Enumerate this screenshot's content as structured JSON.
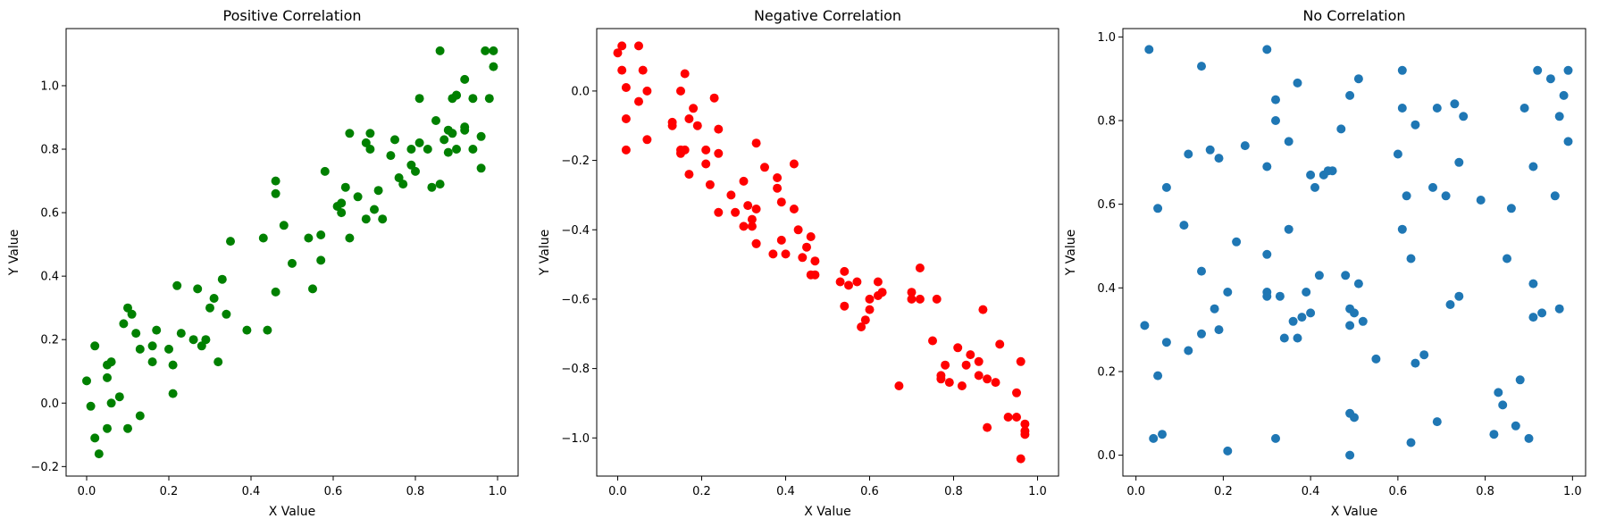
{
  "chart_data": [
    {
      "type": "scatter",
      "title": "Positive Correlation",
      "xlabel": "X Value",
      "ylabel": "Y Value",
      "xlim": [
        -0.05,
        1.05
      ],
      "ylim": [
        -0.23,
        1.18
      ],
      "xticks": [
        "0.0",
        "0.2",
        "0.4",
        "0.6",
        "0.8",
        "1.0"
      ],
      "yticks": [
        "−0.2",
        "0.0",
        "0.2",
        "0.4",
        "0.6",
        "0.8",
        "1.0"
      ],
      "color": "#008000",
      "points": [
        [
          0.0,
          0.07
        ],
        [
          0.01,
          -0.01
        ],
        [
          0.02,
          0.18
        ],
        [
          0.02,
          -0.11
        ],
        [
          0.03,
          -0.16
        ],
        [
          0.05,
          0.08
        ],
        [
          0.05,
          -0.08
        ],
        [
          0.05,
          0.12
        ],
        [
          0.06,
          0.13
        ],
        [
          0.06,
          0.0
        ],
        [
          0.08,
          0.02
        ],
        [
          0.09,
          0.25
        ],
        [
          0.1,
          0.3
        ],
        [
          0.1,
          -0.08
        ],
        [
          0.11,
          0.28
        ],
        [
          0.12,
          0.22
        ],
        [
          0.13,
          0.17
        ],
        [
          0.13,
          -0.04
        ],
        [
          0.16,
          0.13
        ],
        [
          0.16,
          0.18
        ],
        [
          0.17,
          0.23
        ],
        [
          0.2,
          0.17
        ],
        [
          0.21,
          0.12
        ],
        [
          0.21,
          0.03
        ],
        [
          0.22,
          0.37
        ],
        [
          0.23,
          0.22
        ],
        [
          0.26,
          0.2
        ],
        [
          0.27,
          0.36
        ],
        [
          0.28,
          0.18
        ],
        [
          0.29,
          0.2
        ],
        [
          0.3,
          0.3
        ],
        [
          0.31,
          0.33
        ],
        [
          0.32,
          0.13
        ],
        [
          0.33,
          0.39
        ],
        [
          0.34,
          0.28
        ],
        [
          0.35,
          0.51
        ],
        [
          0.39,
          0.23
        ],
        [
          0.43,
          0.52
        ],
        [
          0.44,
          0.23
        ],
        [
          0.46,
          0.35
        ],
        [
          0.46,
          0.66
        ],
        [
          0.46,
          0.7
        ],
        [
          0.48,
          0.56
        ],
        [
          0.5,
          0.44
        ],
        [
          0.54,
          0.52
        ],
        [
          0.55,
          0.36
        ],
        [
          0.57,
          0.53
        ],
        [
          0.57,
          0.45
        ],
        [
          0.58,
          0.73
        ],
        [
          0.61,
          0.62
        ],
        [
          0.62,
          0.63
        ],
        [
          0.62,
          0.6
        ],
        [
          0.63,
          0.68
        ],
        [
          0.64,
          0.52
        ],
        [
          0.64,
          0.85
        ],
        [
          0.66,
          0.65
        ],
        [
          0.68,
          0.58
        ],
        [
          0.68,
          0.82
        ],
        [
          0.69,
          0.8
        ],
        [
          0.69,
          0.85
        ],
        [
          0.7,
          0.61
        ],
        [
          0.71,
          0.67
        ],
        [
          0.72,
          0.58
        ],
        [
          0.74,
          0.78
        ],
        [
          0.75,
          0.83
        ],
        [
          0.76,
          0.71
        ],
        [
          0.77,
          0.69
        ],
        [
          0.79,
          0.8
        ],
        [
          0.79,
          0.75
        ],
        [
          0.8,
          0.73
        ],
        [
          0.81,
          0.96
        ],
        [
          0.81,
          0.82
        ],
        [
          0.83,
          0.8
        ],
        [
          0.84,
          0.68
        ],
        [
          0.85,
          0.89
        ],
        [
          0.86,
          1.11
        ],
        [
          0.86,
          0.69
        ],
        [
          0.87,
          0.83
        ],
        [
          0.88,
          0.86
        ],
        [
          0.88,
          0.79
        ],
        [
          0.89,
          0.96
        ],
        [
          0.89,
          0.85
        ],
        [
          0.9,
          0.97
        ],
        [
          0.9,
          0.97
        ],
        [
          0.9,
          0.8
        ],
        [
          0.92,
          1.02
        ],
        [
          0.92,
          0.86
        ],
        [
          0.92,
          0.87
        ],
        [
          0.94,
          0.96
        ],
        [
          0.94,
          0.8
        ],
        [
          0.96,
          0.84
        ],
        [
          0.96,
          0.74
        ],
        [
          0.97,
          1.11
        ],
        [
          0.98,
          0.96
        ],
        [
          0.99,
          1.11
        ],
        [
          0.99,
          1.06
        ]
      ]
    },
    {
      "type": "scatter",
      "title": "Negative Correlation",
      "xlabel": "X Value",
      "ylabel": "Y Value",
      "xlim": [
        -0.05,
        1.05
      ],
      "ylim": [
        -1.11,
        0.18
      ],
      "xticks": [
        "0.0",
        "0.2",
        "0.4",
        "0.6",
        "0.8",
        "1.0"
      ],
      "yticks": [
        "−1.0",
        "−0.8",
        "−0.6",
        "−0.4",
        "−0.2",
        "0.0"
      ],
      "color": "#ff0000",
      "points": [
        [
          0.0,
          0.11
        ],
        [
          0.01,
          0.13
        ],
        [
          0.01,
          0.06
        ],
        [
          0.02,
          -0.08
        ],
        [
          0.02,
          -0.17
        ],
        [
          0.02,
          0.01
        ],
        [
          0.05,
          0.13
        ],
        [
          0.05,
          -0.03
        ],
        [
          0.06,
          0.06
        ],
        [
          0.07,
          0.0
        ],
        [
          0.07,
          -0.14
        ],
        [
          0.13,
          -0.09
        ],
        [
          0.13,
          -0.1
        ],
        [
          0.15,
          -0.18
        ],
        [
          0.15,
          0.0
        ],
        [
          0.15,
          -0.17
        ],
        [
          0.16,
          -0.17
        ],
        [
          0.16,
          0.05
        ],
        [
          0.17,
          -0.24
        ],
        [
          0.17,
          -0.08
        ],
        [
          0.18,
          -0.05
        ],
        [
          0.19,
          -0.1
        ],
        [
          0.21,
          -0.21
        ],
        [
          0.21,
          -0.17
        ],
        [
          0.22,
          -0.27
        ],
        [
          0.23,
          -0.02
        ],
        [
          0.24,
          -0.11
        ],
        [
          0.24,
          -0.18
        ],
        [
          0.24,
          -0.35
        ],
        [
          0.27,
          -0.3
        ],
        [
          0.28,
          -0.35
        ],
        [
          0.3,
          -0.26
        ],
        [
          0.3,
          -0.39
        ],
        [
          0.31,
          -0.33
        ],
        [
          0.32,
          -0.37
        ],
        [
          0.32,
          -0.39
        ],
        [
          0.33,
          -0.15
        ],
        [
          0.33,
          -0.34
        ],
        [
          0.33,
          -0.44
        ],
        [
          0.33,
          -0.44
        ],
        [
          0.35,
          -0.22
        ],
        [
          0.37,
          -0.47
        ],
        [
          0.38,
          -0.25
        ],
        [
          0.38,
          -0.28
        ],
        [
          0.39,
          -0.43
        ],
        [
          0.39,
          -0.32
        ],
        [
          0.4,
          -0.47
        ],
        [
          0.42,
          -0.21
        ],
        [
          0.42,
          -0.34
        ],
        [
          0.43,
          -0.4
        ],
        [
          0.44,
          -0.48
        ],
        [
          0.45,
          -0.45
        ],
        [
          0.46,
          -0.42
        ],
        [
          0.46,
          -0.53
        ],
        [
          0.47,
          -0.49
        ],
        [
          0.47,
          -0.53
        ],
        [
          0.53,
          -0.55
        ],
        [
          0.54,
          -0.52
        ],
        [
          0.54,
          -0.62
        ],
        [
          0.55,
          -0.56
        ],
        [
          0.57,
          -0.55
        ],
        [
          0.58,
          -0.68
        ],
        [
          0.59,
          -0.66
        ],
        [
          0.6,
          -0.63
        ],
        [
          0.6,
          -0.6
        ],
        [
          0.62,
          -0.59
        ],
        [
          0.62,
          -0.55
        ],
        [
          0.63,
          -0.58
        ],
        [
          0.67,
          -0.85
        ],
        [
          0.7,
          -0.58
        ],
        [
          0.7,
          -0.6
        ],
        [
          0.72,
          -0.6
        ],
        [
          0.72,
          -0.51
        ],
        [
          0.75,
          -0.72
        ],
        [
          0.76,
          -0.6
        ],
        [
          0.77,
          -0.82
        ],
        [
          0.77,
          -0.83
        ],
        [
          0.78,
          -0.79
        ],
        [
          0.79,
          -0.84
        ],
        [
          0.81,
          -0.74
        ],
        [
          0.82,
          -0.85
        ],
        [
          0.83,
          -0.79
        ],
        [
          0.84,
          -0.76
        ],
        [
          0.86,
          -0.78
        ],
        [
          0.86,
          -0.82
        ],
        [
          0.87,
          -0.63
        ],
        [
          0.88,
          -0.83
        ],
        [
          0.88,
          -0.97
        ],
        [
          0.9,
          -0.84
        ],
        [
          0.91,
          -0.73
        ],
        [
          0.93,
          -0.94
        ],
        [
          0.95,
          -0.87
        ],
        [
          0.95,
          -0.94
        ],
        [
          0.96,
          -0.78
        ],
        [
          0.96,
          -1.06
        ],
        [
          0.97,
          -0.96
        ],
        [
          0.97,
          -0.98
        ],
        [
          0.97,
          -0.99
        ]
      ]
    },
    {
      "type": "scatter",
      "title": "No Correlation",
      "xlabel": "X Value",
      "ylabel": "Y Value",
      "xlim": [
        -0.03,
        1.03
      ],
      "ylim": [
        -0.05,
        1.02
      ],
      "xticks": [
        "0.0",
        "0.2",
        "0.4",
        "0.6",
        "0.8",
        "1.0"
      ],
      "yticks": [
        "0.0",
        "0.2",
        "0.4",
        "0.6",
        "0.8",
        "1.0"
      ],
      "color": "#1f77b4",
      "points": [
        [
          0.02,
          0.31
        ],
        [
          0.03,
          0.97
        ],
        [
          0.04,
          0.04
        ],
        [
          0.05,
          0.59
        ],
        [
          0.05,
          0.19
        ],
        [
          0.06,
          0.05
        ],
        [
          0.07,
          0.27
        ],
        [
          0.07,
          0.64
        ],
        [
          0.11,
          0.55
        ],
        [
          0.12,
          0.25
        ],
        [
          0.12,
          0.72
        ],
        [
          0.15,
          0.44
        ],
        [
          0.15,
          0.29
        ],
        [
          0.15,
          0.93
        ],
        [
          0.17,
          0.73
        ],
        [
          0.18,
          0.35
        ],
        [
          0.19,
          0.71
        ],
        [
          0.19,
          0.3
        ],
        [
          0.21,
          0.39
        ],
        [
          0.21,
          0.01
        ],
        [
          0.23,
          0.51
        ],
        [
          0.25,
          0.74
        ],
        [
          0.3,
          0.39
        ],
        [
          0.3,
          0.48
        ],
        [
          0.3,
          0.38
        ],
        [
          0.3,
          0.69
        ],
        [
          0.3,
          0.97
        ],
        [
          0.32,
          0.85
        ],
        [
          0.32,
          0.8
        ],
        [
          0.32,
          0.04
        ],
        [
          0.33,
          0.38
        ],
        [
          0.34,
          0.28
        ],
        [
          0.35,
          0.54
        ],
        [
          0.35,
          0.75
        ],
        [
          0.36,
          0.32
        ],
        [
          0.37,
          0.28
        ],
        [
          0.37,
          0.89
        ],
        [
          0.38,
          0.33
        ],
        [
          0.39,
          0.39
        ],
        [
          0.4,
          0.67
        ],
        [
          0.4,
          0.34
        ],
        [
          0.41,
          0.64
        ],
        [
          0.42,
          0.43
        ],
        [
          0.43,
          0.67
        ],
        [
          0.44,
          0.68
        ],
        [
          0.45,
          0.68
        ],
        [
          0.47,
          0.78
        ],
        [
          0.48,
          0.43
        ],
        [
          0.49,
          0.86
        ],
        [
          0.49,
          0.0
        ],
        [
          0.49,
          0.31
        ],
        [
          0.49,
          0.1
        ],
        [
          0.49,
          0.35
        ],
        [
          0.5,
          0.34
        ],
        [
          0.5,
          0.09
        ],
        [
          0.51,
          0.41
        ],
        [
          0.51,
          0.9
        ],
        [
          0.52,
          0.32
        ],
        [
          0.55,
          0.23
        ],
        [
          0.6,
          0.72
        ],
        [
          0.61,
          0.54
        ],
        [
          0.61,
          0.83
        ],
        [
          0.61,
          0.92
        ],
        [
          0.62,
          0.62
        ],
        [
          0.63,
          0.03
        ],
        [
          0.63,
          0.47
        ],
        [
          0.64,
          0.22
        ],
        [
          0.64,
          0.79
        ],
        [
          0.66,
          0.24
        ],
        [
          0.68,
          0.64
        ],
        [
          0.69,
          0.08
        ],
        [
          0.69,
          0.83
        ],
        [
          0.71,
          0.62
        ],
        [
          0.72,
          0.36
        ],
        [
          0.73,
          0.84
        ],
        [
          0.74,
          0.7
        ],
        [
          0.74,
          0.38
        ],
        [
          0.75,
          0.81
        ],
        [
          0.79,
          0.61
        ],
        [
          0.82,
          0.05
        ],
        [
          0.83,
          0.15
        ],
        [
          0.84,
          0.12
        ],
        [
          0.85,
          0.47
        ],
        [
          0.86,
          0.59
        ],
        [
          0.87,
          0.07
        ],
        [
          0.88,
          0.18
        ],
        [
          0.89,
          0.83
        ],
        [
          0.9,
          0.04
        ],
        [
          0.91,
          0.69
        ],
        [
          0.91,
          0.41
        ],
        [
          0.91,
          0.33
        ],
        [
          0.92,
          0.92
        ],
        [
          0.93,
          0.34
        ],
        [
          0.95,
          0.9
        ],
        [
          0.96,
          0.62
        ],
        [
          0.97,
          0.35
        ],
        [
          0.97,
          0.81
        ],
        [
          0.98,
          0.86
        ],
        [
          0.99,
          0.75
        ],
        [
          0.99,
          0.92
        ]
      ]
    }
  ]
}
